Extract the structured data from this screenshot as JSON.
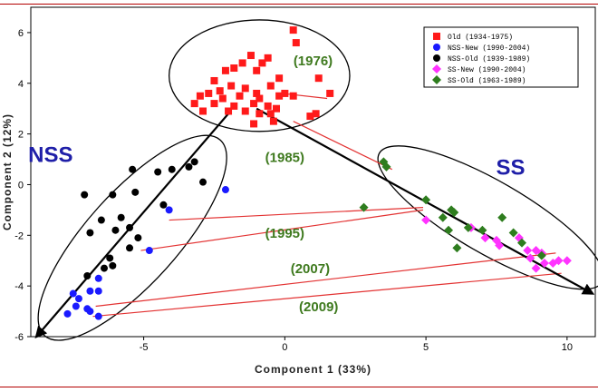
{
  "chart_data": {
    "type": "scatter",
    "xlabel": "Component 1 (33%)",
    "ylabel": "Component 2 (12%)",
    "xlim": [
      -9,
      11
    ],
    "ylim": [
      -6,
      7
    ],
    "xticks": [
      -5,
      0,
      5,
      10
    ],
    "yticks": [
      -6,
      -4,
      -2,
      0,
      2,
      4,
      6
    ],
    "tick_labels_x": [
      "-5",
      "0",
      "5",
      "10"
    ],
    "tick_labels_y": [
      "-6",
      "-4",
      "-2",
      "0",
      "2",
      "4",
      "6"
    ],
    "legend_position": "top-right",
    "series": [
      {
        "name": "Old (1934-1975)",
        "marker": "square",
        "color": "#ff1a1a",
        "points": [
          [
            0.3,
            6.1
          ],
          [
            0.4,
            5.6
          ],
          [
            -1.2,
            5.1
          ],
          [
            -0.8,
            4.8
          ],
          [
            -0.6,
            5.0
          ],
          [
            -1.5,
            4.8
          ],
          [
            -1.0,
            4.5
          ],
          [
            -1.8,
            4.6
          ],
          [
            -2.1,
            4.5
          ],
          [
            -2.5,
            4.1
          ],
          [
            -0.2,
            4.2
          ],
          [
            1.2,
            4.2
          ],
          [
            -2.3,
            3.7
          ],
          [
            -1.9,
            3.9
          ],
          [
            -1.4,
            3.8
          ],
          [
            -1.0,
            3.6
          ],
          [
            -0.5,
            3.9
          ],
          [
            0.0,
            3.6
          ],
          [
            -3.0,
            3.5
          ],
          [
            -2.7,
            3.6
          ],
          [
            -2.2,
            3.4
          ],
          [
            -1.6,
            3.5
          ],
          [
            -0.9,
            3.4
          ],
          [
            -0.2,
            3.5
          ],
          [
            0.3,
            3.5
          ],
          [
            -3.2,
            3.2
          ],
          [
            -2.5,
            3.2
          ],
          [
            -1.8,
            3.1
          ],
          [
            -1.1,
            3.2
          ],
          [
            -0.6,
            3.1
          ],
          [
            -0.3,
            3.0
          ],
          [
            -2.9,
            2.9
          ],
          [
            -2.0,
            2.9
          ],
          [
            -1.4,
            2.9
          ],
          [
            -0.9,
            2.8
          ],
          [
            -0.5,
            2.8
          ],
          [
            1.1,
            2.8
          ],
          [
            -1.1,
            2.4
          ],
          [
            -0.4,
            2.5
          ],
          [
            0.9,
            2.7
          ],
          [
            1.6,
            3.6
          ]
        ]
      },
      {
        "name": "NSS-New (1990-2004)",
        "marker": "circle",
        "color": "#1a1aff",
        "points": [
          [
            -2.1,
            -0.2
          ],
          [
            -4.1,
            -1.0
          ],
          [
            -4.8,
            -2.6
          ],
          [
            -6.6,
            -3.7
          ],
          [
            -6.9,
            -4.2
          ],
          [
            -6.6,
            -4.2
          ],
          [
            -7.5,
            -4.3
          ],
          [
            -7.3,
            -4.5
          ],
          [
            -7.0,
            -4.9
          ],
          [
            -7.4,
            -4.8
          ],
          [
            -7.7,
            -5.1
          ],
          [
            -6.6,
            -5.2
          ],
          [
            -6.9,
            -5.0
          ]
        ]
      },
      {
        "name": "NSS-Old (1939-1989)",
        "marker": "circle",
        "color": "#000000",
        "points": [
          [
            -3.2,
            0.9
          ],
          [
            -3.4,
            0.7
          ],
          [
            -4.0,
            0.6
          ],
          [
            -4.5,
            0.5
          ],
          [
            -5.4,
            0.6
          ],
          [
            -2.9,
            0.1
          ],
          [
            -5.3,
            -0.3
          ],
          [
            -6.1,
            -0.4
          ],
          [
            -7.1,
            -0.4
          ],
          [
            -4.3,
            -0.8
          ],
          [
            -5.8,
            -1.3
          ],
          [
            -6.5,
            -1.4
          ],
          [
            -5.5,
            -1.7
          ],
          [
            -6.0,
            -1.8
          ],
          [
            -6.9,
            -1.9
          ],
          [
            -5.2,
            -2.1
          ],
          [
            -5.5,
            -2.5
          ],
          [
            -6.2,
            -2.9
          ],
          [
            -6.1,
            -3.2
          ],
          [
            -6.4,
            -3.3
          ],
          [
            -7.0,
            -3.6
          ]
        ]
      },
      {
        "name": "SS-New (1990-2004)",
        "marker": "diamond",
        "color": "#ff33ff",
        "points": [
          [
            5.0,
            -1.4
          ],
          [
            6.6,
            -1.7
          ],
          [
            7.1,
            -2.1
          ],
          [
            7.5,
            -2.2
          ],
          [
            7.6,
            -2.4
          ],
          [
            8.3,
            -2.1
          ],
          [
            8.6,
            -2.6
          ],
          [
            8.9,
            -2.6
          ],
          [
            8.7,
            -2.9
          ],
          [
            9.1,
            -2.7
          ],
          [
            9.2,
            -3.1
          ],
          [
            9.5,
            -3.1
          ],
          [
            9.7,
            -3.0
          ],
          [
            10.0,
            -3.0
          ],
          [
            8.9,
            -3.3
          ]
        ]
      },
      {
        "name": "SS-Old (1963-1989)",
        "marker": "diamond",
        "color": "#2e7d1e",
        "points": [
          [
            3.5,
            0.9
          ],
          [
            3.6,
            0.7
          ],
          [
            5.0,
            -0.6
          ],
          [
            5.9,
            -1.0
          ],
          [
            6.0,
            -1.1
          ],
          [
            2.8,
            -0.9
          ],
          [
            5.6,
            -1.3
          ],
          [
            6.5,
            -1.7
          ],
          [
            5.8,
            -1.8
          ],
          [
            6.1,
            -2.5
          ],
          [
            7.0,
            -1.8
          ],
          [
            7.7,
            -1.3
          ],
          [
            8.1,
            -1.9
          ],
          [
            8.4,
            -2.3
          ],
          [
            9.1,
            -2.8
          ]
        ]
      }
    ],
    "trend_lines": [
      {
        "from": [
          -8.8,
          -6.0
        ],
        "to": [
          -2.0,
          2.8
        ]
      },
      {
        "from": [
          -1.0,
          3.0
        ],
        "to": [
          10.9,
          -4.3
        ]
      }
    ],
    "connector_lines": [
      {
        "from": [
          -0.1,
          3.6
        ],
        "to": [
          1.5,
          3.4
        ]
      },
      {
        "from": [
          0.3,
          2.5
        ],
        "to": [
          3.8,
          0.6
        ]
      },
      {
        "from": [
          -4.1,
          -1.4
        ],
        "to": [
          4.9,
          -0.9
        ]
      },
      {
        "from": [
          -5.1,
          -2.6
        ],
        "to": [
          4.9,
          -1.0
        ]
      },
      {
        "from": [
          -6.7,
          -4.8
        ],
        "to": [
          9.6,
          -2.7
        ]
      },
      {
        "from": [
          -6.8,
          -5.2
        ],
        "to": [
          9.8,
          -3.5
        ]
      }
    ],
    "ellipses": [
      {
        "label": "(1976)",
        "center": [
          -0.9,
          4.3
        ],
        "rx": 3.2,
        "ry": 2.2,
        "rotate": 0
      },
      {
        "label": "NSS",
        "center": [
          -5.4,
          -2.1
        ],
        "rx": 4.9,
        "ry": 1.9,
        "rotate": -48
      },
      {
        "label": "SS",
        "center": [
          7.3,
          -1.3
        ],
        "rx": 4.8,
        "ry": 1.5,
        "rotate": 30
      }
    ],
    "annotations": [
      {
        "text": "(1976)",
        "at": [
          1.0,
          4.7
        ],
        "kind": "year"
      },
      {
        "text": "(1985)",
        "at": [
          0.0,
          0.9
        ],
        "kind": "year"
      },
      {
        "text": "(1995)",
        "at": [
          0.0,
          -2.1
        ],
        "kind": "year"
      },
      {
        "text": "(2007)",
        "at": [
          0.9,
          -3.5
        ],
        "kind": "year"
      },
      {
        "text": "(2009)",
        "at": [
          1.2,
          -5.0
        ],
        "kind": "year"
      },
      {
        "text": "NSS",
        "at": [
          -8.3,
          0.9
        ],
        "kind": "group"
      },
      {
        "text": "SS",
        "at": [
          8.0,
          0.4
        ],
        "kind": "group"
      }
    ]
  }
}
